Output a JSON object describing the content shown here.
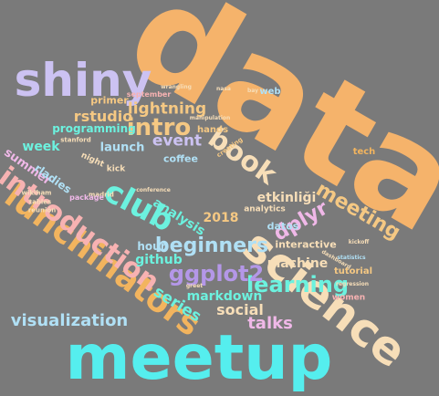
{
  "background_color": "#7a7a7a",
  "words": [
    {
      "text": "data",
      "color": "#f5b36b"
    },
    {
      "text": "meetup",
      "color": "#55eeee"
    },
    {
      "text": "science",
      "color": "#f7deb8"
    },
    {
      "text": "shiny",
      "color": "#ccc2f2"
    },
    {
      "text": "lunchinators",
      "color": "#f2b45e"
    },
    {
      "text": "introduction",
      "color": "#f7b2b2"
    },
    {
      "text": "club",
      "color": "#6cf2df"
    },
    {
      "text": "book",
      "color": "#f7deb8"
    },
    {
      "text": "beginners",
      "color": "#b0e0f5"
    },
    {
      "text": "learning",
      "color": "#6cf2df"
    },
    {
      "text": "ggplot2",
      "color": "#b497e8"
    },
    {
      "text": "dplyr",
      "color": "#f0b8e8"
    },
    {
      "text": "meeting",
      "color": "#f5c883"
    },
    {
      "text": "intro",
      "color": "#f5c883"
    },
    {
      "text": "visualization",
      "color": "#b0e0f5"
    },
    {
      "text": "talks",
      "color": "#f0b8e8"
    },
    {
      "text": "series",
      "color": "#6cf2df"
    },
    {
      "text": "lightning",
      "color": "#f5c883"
    },
    {
      "text": "rstudio",
      "color": "#f5c883"
    },
    {
      "text": "event",
      "color": "#ccc2f2"
    },
    {
      "text": "markdown",
      "color": "#6cf2df"
    },
    {
      "text": "social",
      "color": "#f7deb8"
    },
    {
      "text": "machine",
      "color": "#f7deb8"
    },
    {
      "text": "github",
      "color": "#6cf2df"
    },
    {
      "text": "analysis",
      "color": "#6cf2df"
    },
    {
      "text": "2018",
      "color": "#f5c883"
    },
    {
      "text": "etkinliği",
      "color": "#f7deb8"
    },
    {
      "text": "interactive",
      "color": "#f7deb8"
    },
    {
      "text": "week",
      "color": "#6cf2df"
    },
    {
      "text": "launch",
      "color": "#b0e0f5"
    },
    {
      "text": "programming",
      "color": "#6cf2df"
    },
    {
      "text": "primer",
      "color": "#f5c883"
    },
    {
      "text": "summer",
      "color": "#f0b8e8"
    },
    {
      "text": "rladies",
      "color": "#b0e0f5"
    },
    {
      "text": "hour",
      "color": "#b0e0f5"
    },
    {
      "text": "coffee",
      "color": "#b0e0f5"
    },
    {
      "text": "datos",
      "color": "#b0e0f5"
    },
    {
      "text": "tutorial",
      "color": "#f5c883"
    },
    {
      "text": "women",
      "color": "#f7b2b2"
    },
    {
      "text": "web",
      "color": "#b0e0f5"
    },
    {
      "text": "september",
      "color": "#f7b2b2"
    },
    {
      "text": "hands",
      "color": "#f5c883"
    },
    {
      "text": "analytics",
      "color": "#f7deb8"
    },
    {
      "text": "tech",
      "color": "#f2b45e"
    },
    {
      "text": "night",
      "color": "#f7deb8"
    },
    {
      "text": "kick",
      "color": "#f7deb8"
    },
    {
      "text": "stanford",
      "color": "#f7deb8"
    },
    {
      "text": "madrid",
      "color": "#f7deb8"
    },
    {
      "text": "package",
      "color": "#f0b8e8"
    },
    {
      "text": "reunión",
      "color": "#f7deb8"
    },
    {
      "text": "tables",
      "color": "#f7deb8"
    },
    {
      "text": "wikiham",
      "color": "#f7deb8"
    },
    {
      "text": "regression",
      "color": "#f7deb8"
    },
    {
      "text": "creating",
      "color": "#f5c883"
    },
    {
      "text": "conference",
      "color": "#f7deb8"
    },
    {
      "text": "statistics",
      "color": "#b0e0f5"
    },
    {
      "text": "kickoff",
      "color": "#f7deb8"
    },
    {
      "text": "wrangling",
      "color": "#f7deb8"
    },
    {
      "text": "manipulation",
      "color": "#f7deb8"
    },
    {
      "text": "nasa",
      "color": "#f7deb8"
    },
    {
      "text": "bay",
      "color": "#f7deb8"
    },
    {
      "text": "greet",
      "color": "#f7deb8"
    },
    {
      "text": "dashboard",
      "color": "#f7deb8"
    }
  ]
}
